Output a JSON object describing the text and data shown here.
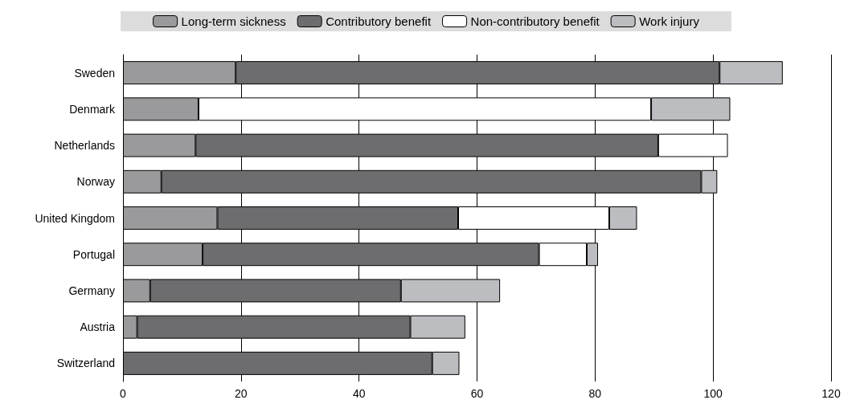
{
  "chart_data": {
    "type": "bar",
    "orientation": "horizontal",
    "stacked": true,
    "categories": [
      "Sweden",
      "Denmark",
      "Netherlands",
      "Norway",
      "United Kingdom",
      "Portugal",
      "Germany",
      "Austria",
      "Switzerland"
    ],
    "series": [
      {
        "name": "Long-term sickness",
        "color": "#9a9a9c",
        "values": [
          19.1,
          12.8,
          12.3,
          6.5,
          16,
          13.5,
          4.6,
          2.4,
          null
        ]
      },
      {
        "name": "Contributory benefit",
        "color": "#6d6d70",
        "values": [
          82,
          null,
          78.4,
          91.5,
          40.8,
          57,
          42.5,
          46.3,
          52.4
        ]
      },
      {
        "name": "Non-contributory benefit",
        "color": "#ffffff",
        "values": [
          null,
          76.7,
          11.8,
          null,
          25.6,
          8.1,
          null,
          null,
          null
        ]
      },
      {
        "name": "Work injury",
        "color": "#bcbdc0",
        "values": [
          10.7,
          13.4,
          null,
          2.7,
          4.7,
          1.9,
          16.8,
          9.3,
          4.6
        ]
      }
    ],
    "xlim": [
      0,
      120
    ],
    "xticks": [
      0,
      20,
      40,
      60,
      80,
      100,
      120
    ],
    "grid": "x",
    "legend": "top"
  }
}
